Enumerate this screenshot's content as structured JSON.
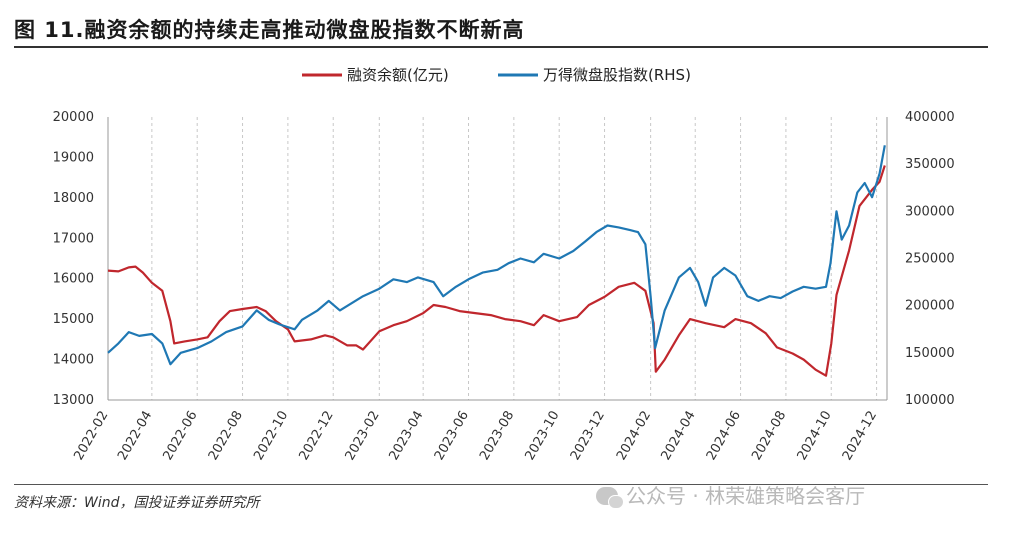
{
  "title": "图 11.融资余额的持续走高推动微盘股指数不断新高",
  "source": "资料来源：Wind，国投证券证券研究所",
  "watermark": "公众号 · 林荣雄策略会客厅",
  "colors": {
    "margin": "#c0272d",
    "index": "#1f78b4"
  },
  "chart_data": {
    "type": "line",
    "legend_position": "top-center",
    "grid": "vertical",
    "x_ticks": [
      "2022-02",
      "2022-04",
      "2022-06",
      "2022-08",
      "2022-10",
      "2022-12",
      "2023-02",
      "2023-04",
      "2023-06",
      "2023-08",
      "2023-10",
      "2023-12",
      "2024-02",
      "2024-04",
      "2024-06",
      "2024-08",
      "2024-10",
      "2024-12"
    ],
    "y_left_ticks": [
      "20000",
      "19000",
      "18000",
      "17000",
      "16000",
      "15000",
      "14000",
      "13000"
    ],
    "y_right_ticks": [
      "400000",
      "350000",
      "300000",
      "250000",
      "200000",
      "150000",
      "100000"
    ],
    "ylim_left": [
      13000,
      20000
    ],
    "ylim_right": [
      100000,
      400000
    ],
    "series": [
      {
        "name": "融资余额(亿元)",
        "axis": "left",
        "points": [
          [
            "2022-02-01",
            16200
          ],
          [
            "2022-02-15",
            16180
          ],
          [
            "2022-03-01",
            16280
          ],
          [
            "2022-03-10",
            16300
          ],
          [
            "2022-03-20",
            16150
          ],
          [
            "2022-04-01",
            15900
          ],
          [
            "2022-04-15",
            15700
          ],
          [
            "2022-04-26",
            14950
          ],
          [
            "2022-05-01",
            14400
          ],
          [
            "2022-05-15",
            14450
          ],
          [
            "2022-06-01",
            14500
          ],
          [
            "2022-06-15",
            14550
          ],
          [
            "2022-07-01",
            14950
          ],
          [
            "2022-07-15",
            15200
          ],
          [
            "2022-08-01",
            15250
          ],
          [
            "2022-08-20",
            15300
          ],
          [
            "2022-09-01",
            15200
          ],
          [
            "2022-09-15",
            14950
          ],
          [
            "2022-10-01",
            14750
          ],
          [
            "2022-10-10",
            14450
          ],
          [
            "2022-11-01",
            14500
          ],
          [
            "2022-11-20",
            14600
          ],
          [
            "2022-12-01",
            14550
          ],
          [
            "2022-12-20",
            14350
          ],
          [
            "2023-01-01",
            14350
          ],
          [
            "2023-01-10",
            14250
          ],
          [
            "2023-02-01",
            14700
          ],
          [
            "2023-02-20",
            14850
          ],
          [
            "2023-03-10",
            14950
          ],
          [
            "2023-04-01",
            15150
          ],
          [
            "2023-04-15",
            15350
          ],
          [
            "2023-05-01",
            15300
          ],
          [
            "2023-05-20",
            15200
          ],
          [
            "2023-06-10",
            15150
          ],
          [
            "2023-07-01",
            15100
          ],
          [
            "2023-07-20",
            15000
          ],
          [
            "2023-08-10",
            14950
          ],
          [
            "2023-08-28",
            14850
          ],
          [
            "2023-09-10",
            15100
          ],
          [
            "2023-10-01",
            14950
          ],
          [
            "2023-10-25",
            15050
          ],
          [
            "2023-11-10",
            15350
          ],
          [
            "2023-12-01",
            15550
          ],
          [
            "2023-12-20",
            15800
          ],
          [
            "2024-01-10",
            15900
          ],
          [
            "2024-01-25",
            15700
          ],
          [
            "2024-02-05",
            14900
          ],
          [
            "2024-02-08",
            13700
          ],
          [
            "2024-02-20",
            14000
          ],
          [
            "2024-03-10",
            14600
          ],
          [
            "2024-03-25",
            15000
          ],
          [
            "2024-04-15",
            14900
          ],
          [
            "2024-05-10",
            14800
          ],
          [
            "2024-05-25",
            15000
          ],
          [
            "2024-06-15",
            14900
          ],
          [
            "2024-07-05",
            14650
          ],
          [
            "2024-07-20",
            14300
          ],
          [
            "2024-08-10",
            14150
          ],
          [
            "2024-08-25",
            14000
          ],
          [
            "2024-09-10",
            13750
          ],
          [
            "2024-09-24",
            13600
          ],
          [
            "2024-10-01",
            14400
          ],
          [
            "2024-10-08",
            15600
          ],
          [
            "2024-10-25",
            16700
          ],
          [
            "2024-11-08",
            17800
          ],
          [
            "2024-11-25",
            18200
          ],
          [
            "2024-12-05",
            18400
          ],
          [
            "2024-12-12",
            18800
          ]
        ]
      },
      {
        "name": "万得微盘股指数(RHS)",
        "axis": "right",
        "points": [
          [
            "2022-02-01",
            150000
          ],
          [
            "2022-02-15",
            160000
          ],
          [
            "2022-03-01",
            172000
          ],
          [
            "2022-03-15",
            168000
          ],
          [
            "2022-04-01",
            170000
          ],
          [
            "2022-04-15",
            160000
          ],
          [
            "2022-04-26",
            138000
          ],
          [
            "2022-05-10",
            150000
          ],
          [
            "2022-06-01",
            155000
          ],
          [
            "2022-06-20",
            162000
          ],
          [
            "2022-07-10",
            172000
          ],
          [
            "2022-08-01",
            178000
          ],
          [
            "2022-08-20",
            195000
          ],
          [
            "2022-09-05",
            185000
          ],
          [
            "2022-09-20",
            180000
          ],
          [
            "2022-10-10",
            175000
          ],
          [
            "2022-10-20",
            185000
          ],
          [
            "2022-11-10",
            195000
          ],
          [
            "2022-11-25",
            205000
          ],
          [
            "2022-12-10",
            195000
          ],
          [
            "2023-01-10",
            210000
          ],
          [
            "2023-02-01",
            218000
          ],
          [
            "2023-02-20",
            228000
          ],
          [
            "2023-03-10",
            225000
          ],
          [
            "2023-03-25",
            230000
          ],
          [
            "2023-04-15",
            225000
          ],
          [
            "2023-04-28",
            210000
          ],
          [
            "2023-05-15",
            220000
          ],
          [
            "2023-06-01",
            228000
          ],
          [
            "2023-06-20",
            235000
          ],
          [
            "2023-07-10",
            238000
          ],
          [
            "2023-07-25",
            245000
          ],
          [
            "2023-08-10",
            250000
          ],
          [
            "2023-08-28",
            246000
          ],
          [
            "2023-09-10",
            255000
          ],
          [
            "2023-10-01",
            250000
          ],
          [
            "2023-10-20",
            258000
          ],
          [
            "2023-11-05",
            268000
          ],
          [
            "2023-11-20",
            278000
          ],
          [
            "2023-12-05",
            285000
          ],
          [
            "2023-12-20",
            283000
          ],
          [
            "2024-01-05",
            280000
          ],
          [
            "2024-01-15",
            278000
          ],
          [
            "2024-01-25",
            265000
          ],
          [
            "2024-02-01",
            210000
          ],
          [
            "2024-02-07",
            155000
          ],
          [
            "2024-02-20",
            195000
          ],
          [
            "2024-03-10",
            230000
          ],
          [
            "2024-03-25",
            240000
          ],
          [
            "2024-04-05",
            225000
          ],
          [
            "2024-04-15",
            200000
          ],
          [
            "2024-04-25",
            230000
          ],
          [
            "2024-05-10",
            240000
          ],
          [
            "2024-05-25",
            232000
          ],
          [
            "2024-06-10",
            210000
          ],
          [
            "2024-06-25",
            205000
          ],
          [
            "2024-07-10",
            210000
          ],
          [
            "2024-07-25",
            208000
          ],
          [
            "2024-08-10",
            215000
          ],
          [
            "2024-08-25",
            220000
          ],
          [
            "2024-09-10",
            218000
          ],
          [
            "2024-09-24",
            220000
          ],
          [
            "2024-09-30",
            245000
          ],
          [
            "2024-10-08",
            300000
          ],
          [
            "2024-10-15",
            270000
          ],
          [
            "2024-10-25",
            285000
          ],
          [
            "2024-11-05",
            320000
          ],
          [
            "2024-11-15",
            330000
          ],
          [
            "2024-11-25",
            315000
          ],
          [
            "2024-12-05",
            340000
          ],
          [
            "2024-12-12",
            370000
          ]
        ]
      }
    ]
  }
}
